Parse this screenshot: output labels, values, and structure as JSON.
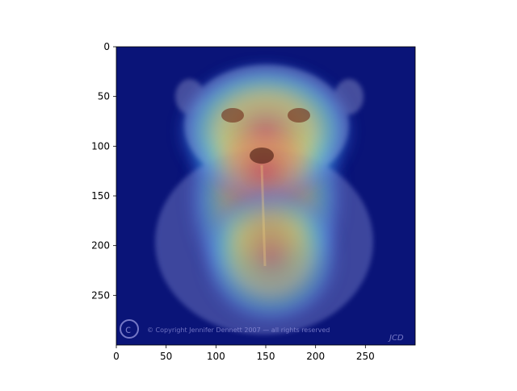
{
  "chart_data": {
    "type": "heatmap",
    "title": "",
    "xlabel": "",
    "ylabel": "",
    "xlim": [
      0,
      300
    ],
    "ylim": [
      300,
      0
    ],
    "x_ticks": [
      0,
      50,
      100,
      150,
      200,
      250
    ],
    "y_ticks": [
      0,
      50,
      100,
      150,
      200,
      250
    ],
    "x_tick_labels": [
      "0",
      "50",
      "100",
      "150",
      "200",
      "250"
    ],
    "y_tick_labels": [
      "0",
      "50",
      "100",
      "150",
      "200",
      "250"
    ],
    "colormap": "jet",
    "overlay": "activation heatmap over photo",
    "hotspots": [
      {
        "x": 150,
        "y": 150,
        "rx": 80,
        "ry": 110,
        "intensity": 0.55
      },
      {
        "x": 150,
        "y": 85,
        "rx": 90,
        "ry": 70,
        "intensity": 0.7
      },
      {
        "x": 148,
        "y": 125,
        "rx": 55,
        "ry": 45,
        "intensity": 1.0
      },
      {
        "x": 155,
        "y": 210,
        "rx": 70,
        "ry": 70,
        "intensity": 0.5
      }
    ],
    "watermark": "© Copyright Jennifer Dennett 2007 — all rights reserved",
    "signature": "JCD",
    "grid": false
  }
}
